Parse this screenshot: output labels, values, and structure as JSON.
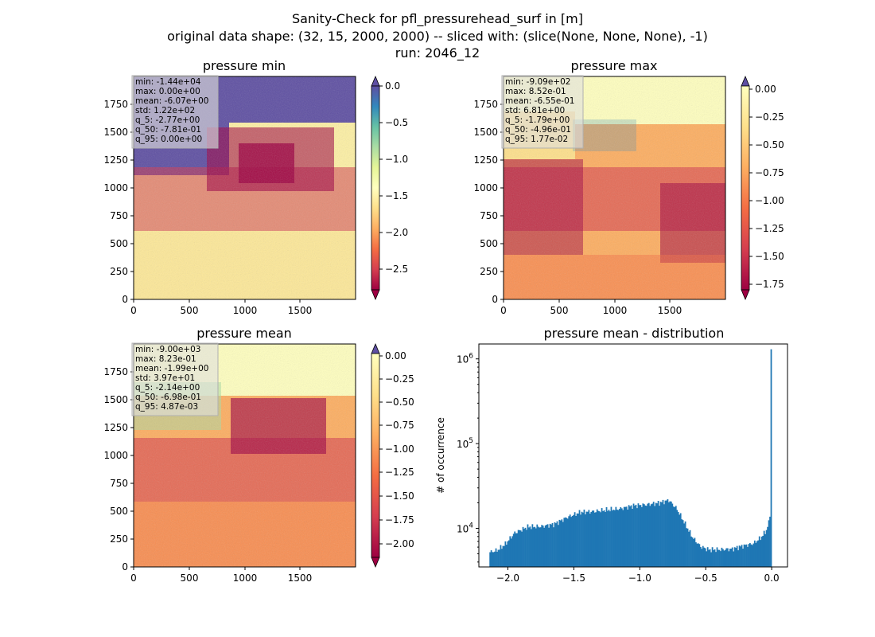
{
  "title": {
    "line1": "Sanity-Check for pfl_pressurehead_surf in [m]",
    "line2": "original data shape: (32, 15, 2000, 2000) -- sliced with: (slice(None, None, None), -1)",
    "line3": "run: 2046_12"
  },
  "chart_data": [
    {
      "type": "heatmap",
      "title": "pressure min",
      "xlim": [
        0,
        2000
      ],
      "ylim": [
        0,
        2000
      ],
      "x_ticks": [
        "0",
        "500",
        "1000",
        "1500"
      ],
      "y_ticks": [
        "0",
        "250",
        "500",
        "750",
        "1000",
        "1250",
        "1500",
        "1750"
      ],
      "colorbar": {
        "range": [
          -2.8,
          0.0
        ],
        "ticks": [
          "0.0",
          "−0.5",
          "−1.0",
          "−1.5",
          "−2.0",
          "−2.5"
        ],
        "extend": "both",
        "colormap": "Spectral"
      },
      "stats": [
        "min: -1.44e+04",
        "max: 0.00e+00",
        "mean: -6.07e+00",
        "std: 1.22e+02",
        "q_5: -2.77e+00",
        "q_50: -7.81e-01",
        "q_95: 0.00e+00"
      ]
    },
    {
      "type": "heatmap",
      "title": "pressure max",
      "xlim": [
        0,
        2000
      ],
      "ylim": [
        0,
        2000
      ],
      "x_ticks": [
        "0",
        "500",
        "1000",
        "1500"
      ],
      "y_ticks": [
        "0",
        "250",
        "500",
        "750",
        "1000",
        "1250",
        "1500",
        "1750"
      ],
      "colorbar": {
        "range": [
          -1.85,
          0.0
        ],
        "ticks": [
          "0.00",
          "−0.25",
          "−0.50",
          "−0.75",
          "−1.00",
          "−1.25",
          "−1.50",
          "−1.75"
        ],
        "extend": "both",
        "colormap": "Spectral"
      },
      "stats": [
        "min: -9.09e+02",
        "max: 8.52e-01",
        "mean: -6.55e-01",
        "std: 6.81e+00",
        "q_5: -1.79e+00",
        "q_50: -4.96e-01",
        "q_95: 1.77e-02"
      ]
    },
    {
      "type": "heatmap",
      "title": "pressure mean",
      "xlim": [
        0,
        2000
      ],
      "ylim": [
        0,
        2000
      ],
      "x_ticks": [
        "0",
        "500",
        "1000",
        "1500"
      ],
      "y_ticks": [
        "0",
        "250",
        "500",
        "750",
        "1000",
        "1250",
        "1500",
        "1750"
      ],
      "colorbar": {
        "range": [
          -2.2,
          0.0
        ],
        "ticks": [
          "0.00",
          "−0.25",
          "−0.50",
          "−0.75",
          "−1.00",
          "−1.25",
          "−1.50",
          "−1.75",
          "−2.00"
        ],
        "extend": "both",
        "colormap": "Spectral"
      },
      "stats": [
        "min: -9.00e+03",
        "max: 8.23e-01",
        "mean: -1.99e+00",
        "std: 3.97e+01",
        "q_5: -2.14e+00",
        "q_50: -6.98e-01",
        "q_95: 4.87e-03"
      ]
    },
    {
      "type": "bar",
      "title": "pressure mean - distribution",
      "ylabel": "# of occurrence",
      "yscale": "log",
      "xlim": [
        -2.22,
        0.12
      ],
      "ylim": [
        3500,
        1500000
      ],
      "x_ticks": [
        {
          "value": -2.0,
          "label": "−2.0"
        },
        {
          "value": -1.5,
          "label": "−1.5"
        },
        {
          "value": -1.0,
          "label": "−1.0"
        },
        {
          "value": -0.5,
          "label": "−0.5"
        },
        {
          "value": 0.0,
          "label": "0.0"
        }
      ],
      "y_ticks": [
        {
          "value": 10000,
          "base": "10",
          "exp": "4"
        },
        {
          "value": 100000,
          "base": "10",
          "exp": "5"
        },
        {
          "value": 1000000,
          "base": "10",
          "exp": "6"
        }
      ],
      "bin_range": [
        -2.14,
        0.0
      ],
      "bin_count": 240,
      "color": "#1f77b4",
      "profile": [
        [
          -2.14,
          5200
        ],
        [
          -2.08,
          5500
        ],
        [
          -2.02,
          6500
        ],
        [
          -1.95,
          8800
        ],
        [
          -1.85,
          10400
        ],
        [
          -1.75,
          10500
        ],
        [
          -1.65,
          11200
        ],
        [
          -1.55,
          13500
        ],
        [
          -1.45,
          15500
        ],
        [
          -1.35,
          15800
        ],
        [
          -1.25,
          16500
        ],
        [
          -1.15,
          17000
        ],
        [
          -1.05,
          18500
        ],
        [
          -0.95,
          19000
        ],
        [
          -0.85,
          20000
        ],
        [
          -0.78,
          21500
        ],
        [
          -0.72,
          17000
        ],
        [
          -0.66,
          11500
        ],
        [
          -0.6,
          7800
        ],
        [
          -0.54,
          6100
        ],
        [
          -0.48,
          5600
        ],
        [
          -0.4,
          5600
        ],
        [
          -0.3,
          5700
        ],
        [
          -0.22,
          6200
        ],
        [
          -0.14,
          6600
        ],
        [
          -0.08,
          7800
        ],
        [
          -0.04,
          9500
        ],
        [
          -0.02,
          12000
        ],
        [
          -0.01,
          16000
        ],
        [
          -0.005,
          28000
        ],
        [
          0.0,
          1300000
        ]
      ]
    }
  ]
}
